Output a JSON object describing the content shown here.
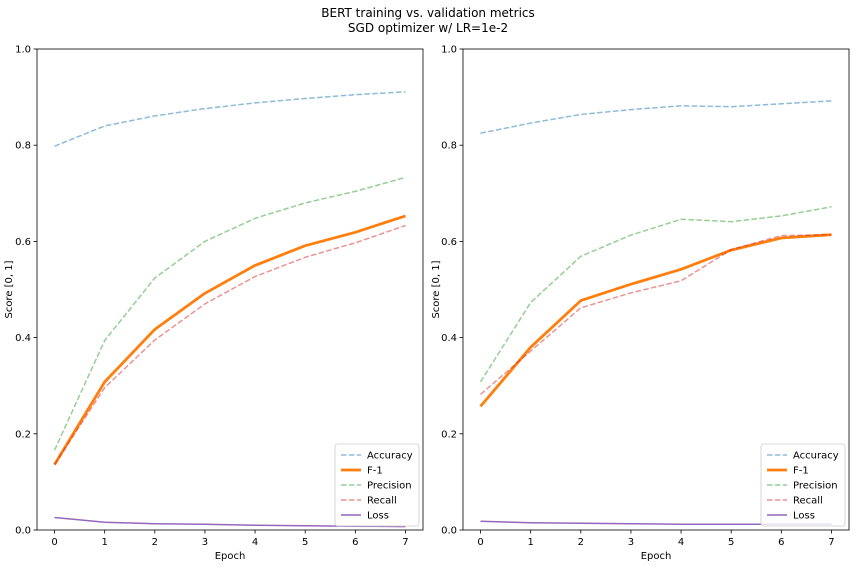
{
  "figure": {
    "title_line1": "BERT training vs. validation metrics",
    "title_line2": "SGD optimizer w/ LR=1e-2"
  },
  "chart_data": [
    {
      "type": "line",
      "xlabel": "Epoch",
      "ylabel": "Score [0, 1]",
      "x": [
        0,
        1,
        2,
        3,
        4,
        5,
        6,
        7
      ],
      "xlim": [
        -0.35,
        7.35
      ],
      "ylim": [
        0,
        1
      ],
      "xticks": [
        "0",
        "1",
        "2",
        "3",
        "4",
        "5",
        "6",
        "7"
      ],
      "yticks": [
        "0.0",
        "0.2",
        "0.4",
        "0.6",
        "0.8",
        "1.0"
      ],
      "legend_position": "lower right",
      "grid": false,
      "series": [
        {
          "name": "Accuracy",
          "color": "#1f77b4",
          "style": "dashed",
          "alpha": 0.5,
          "values": [
            0.798,
            0.84,
            0.861,
            0.876,
            0.888,
            0.897,
            0.905,
            0.911
          ]
        },
        {
          "name": "F-1",
          "color": "#ff7f0e",
          "style": "solid",
          "alpha": 1.0,
          "values": [
            0.136,
            0.308,
            0.417,
            0.492,
            0.55,
            0.591,
            0.619,
            0.653
          ]
        },
        {
          "name": "Precision",
          "color": "#2ca02c",
          "style": "dashed",
          "alpha": 0.5,
          "values": [
            0.166,
            0.394,
            0.524,
            0.6,
            0.648,
            0.68,
            0.704,
            0.733
          ]
        },
        {
          "name": "Recall",
          "color": "#d62728",
          "style": "dashed",
          "alpha": 0.5,
          "values": [
            0.136,
            0.296,
            0.395,
            0.47,
            0.527,
            0.567,
            0.597,
            0.633
          ]
        },
        {
          "name": "Loss",
          "color": "#9467bd",
          "style": "solid",
          "alpha": 1.0,
          "values": [
            0.026,
            0.016,
            0.013,
            0.012,
            0.01,
            0.009,
            0.008,
            0.007
          ]
        }
      ]
    },
    {
      "type": "line",
      "xlabel": "Epoch",
      "ylabel": "Score [0, 1]",
      "x": [
        0,
        1,
        2,
        3,
        4,
        5,
        6,
        7
      ],
      "xlim": [
        -0.35,
        7.35
      ],
      "ylim": [
        0,
        1
      ],
      "xticks": [
        "0",
        "1",
        "2",
        "3",
        "4",
        "5",
        "6",
        "7"
      ],
      "yticks": [
        "0.0",
        "0.2",
        "0.4",
        "0.6",
        "0.8",
        "1.0"
      ],
      "legend_position": "lower right",
      "grid": false,
      "series": [
        {
          "name": "Accuracy",
          "color": "#1f77b4",
          "style": "dashed",
          "alpha": 0.5,
          "values": [
            0.825,
            0.846,
            0.864,
            0.874,
            0.882,
            0.88,
            0.886,
            0.892
          ]
        },
        {
          "name": "F-1",
          "color": "#ff7f0e",
          "style": "solid",
          "alpha": 1.0,
          "values": [
            0.257,
            0.38,
            0.477,
            0.511,
            0.542,
            0.582,
            0.607,
            0.614
          ]
        },
        {
          "name": "Precision",
          "color": "#2ca02c",
          "style": "dashed",
          "alpha": 0.5,
          "values": [
            0.308,
            0.473,
            0.569,
            0.613,
            0.646,
            0.641,
            0.653,
            0.672
          ]
        },
        {
          "name": "Recall",
          "color": "#d62728",
          "style": "dashed",
          "alpha": 0.5,
          "values": [
            0.282,
            0.372,
            0.462,
            0.493,
            0.518,
            0.583,
            0.612,
            0.614
          ]
        },
        {
          "name": "Loss",
          "color": "#9467bd",
          "style": "solid",
          "alpha": 1.0,
          "values": [
            0.018,
            0.015,
            0.014,
            0.013,
            0.012,
            0.012,
            0.012,
            0.012
          ]
        }
      ]
    }
  ]
}
